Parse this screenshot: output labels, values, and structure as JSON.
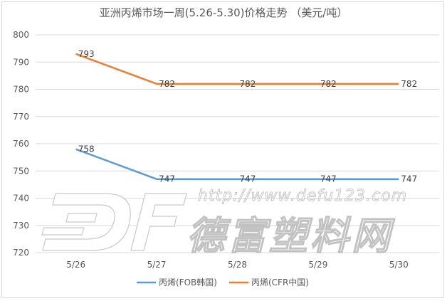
{
  "chart_data": {
    "type": "line",
    "title": "亚洲丙烯市场一周(5.26-5.30)价格走势 （美元/吨）",
    "categories": [
      "5/26",
      "5/27",
      "5/28",
      "5/29",
      "5/30"
    ],
    "ylim": [
      720,
      800
    ],
    "yticks": [
      "720",
      "730",
      "740",
      "750",
      "760",
      "770",
      "780",
      "790",
      "800"
    ],
    "grid": "horizontal",
    "legend_position": "bottom",
    "series": [
      {
        "name": "丙烯(FOB韩国)",
        "color": "#5b9bd5",
        "values": [
          758,
          747,
          747,
          747,
          747
        ]
      },
      {
        "name": "丙烯(CFR中国)",
        "color": "#ed7d31",
        "values": [
          793,
          782,
          782,
          782,
          782
        ]
      }
    ]
  },
  "watermark": {
    "url": "http://www.defu123.com",
    "name": "德富塑料网"
  }
}
